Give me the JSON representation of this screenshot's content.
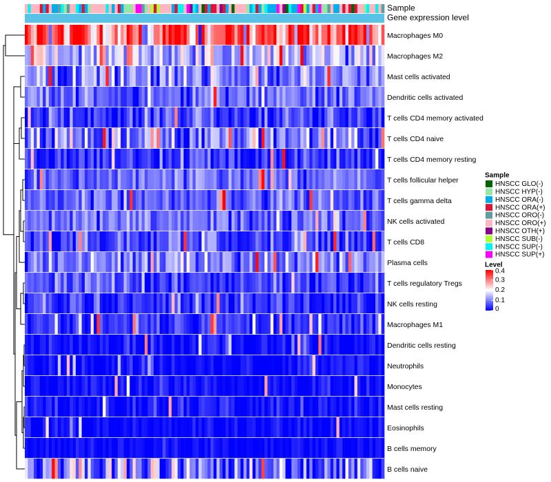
{
  "chart_data": {
    "type": "heatmap",
    "annotation_tracks": [
      "Sample",
      "Gene expression level"
    ],
    "rows": [
      {
        "name": "Macrophages M0",
        "mean": 0.32,
        "spread": 0.1
      },
      {
        "name": "Macrophages M2",
        "mean": 0.15,
        "spread": 0.06
      },
      {
        "name": "Mast cells activated",
        "mean": 0.1,
        "spread": 0.06
      },
      {
        "name": "Dendritic cells activated",
        "mean": 0.08,
        "spread": 0.05
      },
      {
        "name": "T cells CD4 memory activated",
        "mean": 0.05,
        "spread": 0.05
      },
      {
        "name": "T cells CD4 naive",
        "mean": 0.1,
        "spread": 0.07
      },
      {
        "name": "T cells CD4 memory resting",
        "mean": 0.04,
        "spread": 0.04
      },
      {
        "name": "T cells follicular helper",
        "mean": 0.08,
        "spread": 0.04
      },
      {
        "name": "T cells gamma delta",
        "mean": 0.08,
        "spread": 0.04
      },
      {
        "name": "NK cells activated",
        "mean": 0.08,
        "spread": 0.04
      },
      {
        "name": "T cells CD8",
        "mean": 0.05,
        "spread": 0.05
      },
      {
        "name": "Plasma cells",
        "mean": 0.1,
        "spread": 0.05
      },
      {
        "name": "T cells regulatory  Tregs",
        "mean": 0.06,
        "spread": 0.05
      },
      {
        "name": "NK cells resting",
        "mean": 0.04,
        "spread": 0.04
      },
      {
        "name": "Macrophages M1",
        "mean": 0.04,
        "spread": 0.03
      },
      {
        "name": "Dendritic cells resting",
        "mean": 0.01,
        "spread": 0.03
      },
      {
        "name": "Neutrophils",
        "mean": 0.01,
        "spread": 0.03
      },
      {
        "name": "Monocytes",
        "mean": 0.01,
        "spread": 0.02
      },
      {
        "name": "Mast cells resting",
        "mean": 0.01,
        "spread": 0.03
      },
      {
        "name": "Eosinophils",
        "mean": 0.005,
        "spread": 0.02
      },
      {
        "name": "B cells memory",
        "mean": 0.005,
        "spread": 0.02
      },
      {
        "name": "B cells naive",
        "mean": 0.08,
        "spread": 0.08
      }
    ],
    "n_samples": 120,
    "legend_sample": {
      "title": "Sample",
      "items": [
        {
          "label": "HNSCC GLO(-)",
          "color": "#006400"
        },
        {
          "label": "HNSCC HYP(-)",
          "color": "#98E6A6"
        },
        {
          "label": "HNSCC ORA(-)",
          "color": "#00AEEF"
        },
        {
          "label": "HNSCC ORA(+)",
          "color": "#DC143C"
        },
        {
          "label": "HNSCC ORO(-)",
          "color": "#5F9EA0"
        },
        {
          "label": "HNSCC ORO(+)",
          "color": "#FFB6C1"
        },
        {
          "label": "HNSCC OTH(+)",
          "color": "#8B008B"
        },
        {
          "label": "HNSCC SUB(-)",
          "color": "#ADFF2F"
        },
        {
          "label": "HNSCC SUP(-)",
          "color": "#00F5F5"
        },
        {
          "label": "HNSCC SUP(+)",
          "color": "#FF00FF"
        }
      ]
    },
    "legend_level": {
      "title": "Level",
      "range": [
        0,
        0.4
      ],
      "ticks": [
        "0.4",
        "0.3",
        "0.2",
        "0.1",
        "0"
      ],
      "tick_values": [
        0.4,
        0.3,
        0.2,
        0.1,
        0
      ],
      "color_low": "#0000FF",
      "color_mid": "#FFFFFF",
      "color_high": "#FF0000"
    },
    "expression_level_color": "#5BC2E7"
  }
}
